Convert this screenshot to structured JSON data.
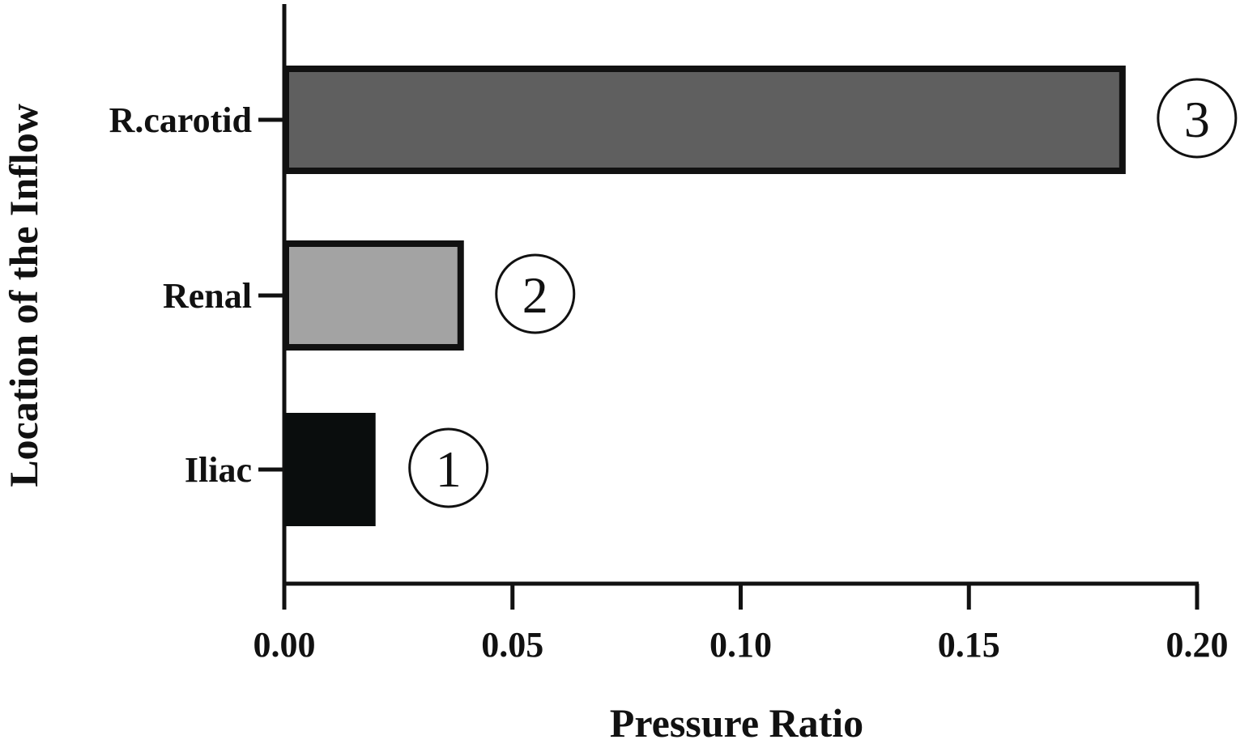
{
  "chart_data": {
    "type": "bar",
    "orientation": "horizontal",
    "categories": [
      "R.carotid",
      "Renal",
      "Iliac"
    ],
    "values": [
      0.184,
      0.039,
      0.02
    ],
    "bar_colors": [
      "#5f5f5f",
      "#a3a3a3",
      "#0a0d0d"
    ],
    "bar_outline": [
      "outlined",
      "outlined",
      "none"
    ],
    "annotations": [
      "3",
      "2",
      "1"
    ],
    "xlabel": "Pressure Ratio",
    "ylabel": "Location of the Inflow",
    "xlim": [
      0,
      0.2
    ],
    "xticks": [
      "0.00",
      "0.05",
      "0.10",
      "0.15",
      "0.20"
    ],
    "grid": false,
    "legend": "none"
  }
}
